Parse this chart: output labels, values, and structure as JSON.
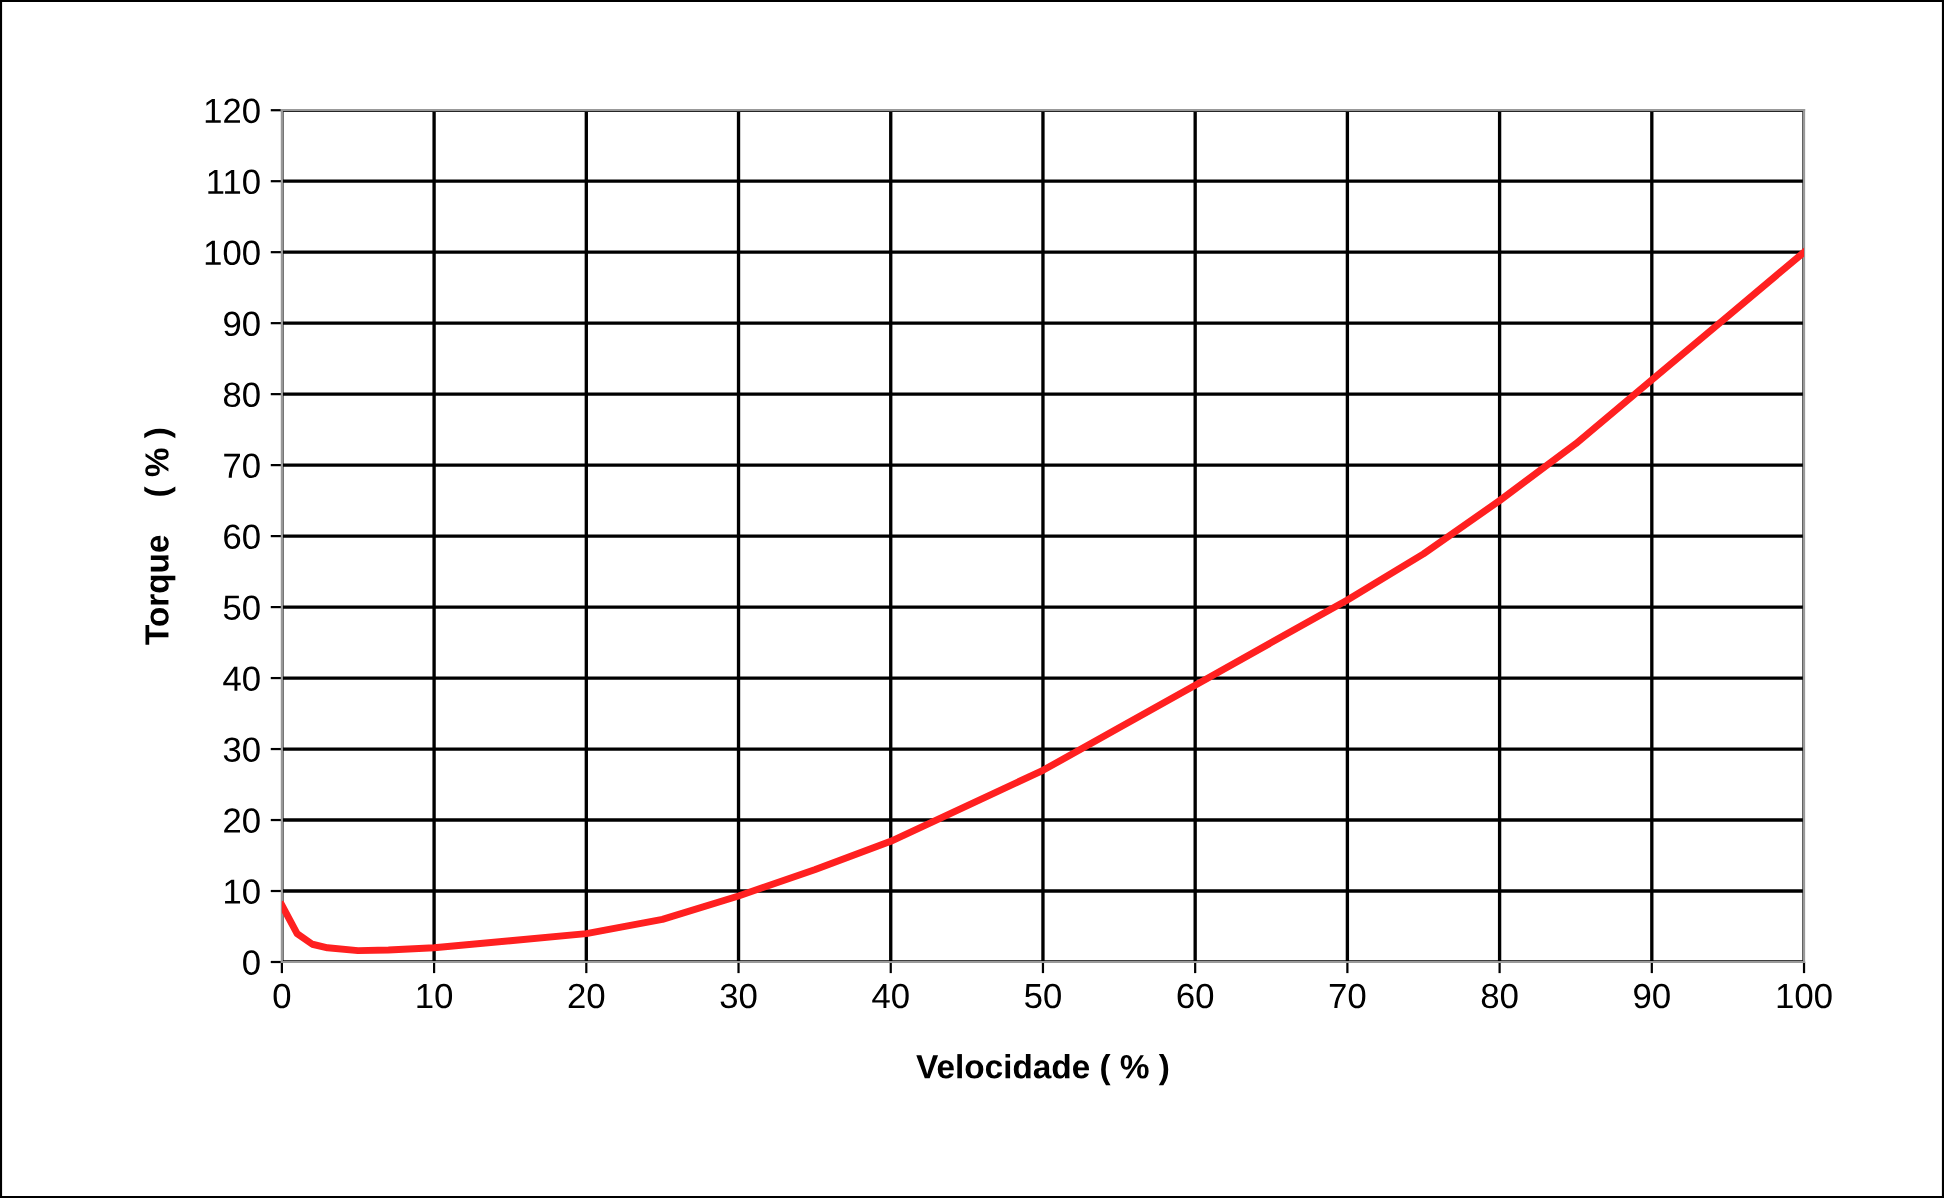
{
  "chart_data": {
    "type": "line",
    "xlabel": "Velocidade ( % )",
    "ylabel": "Torque    ( % )",
    "x": [
      0,
      1,
      2,
      3,
      5,
      7,
      10,
      15,
      20,
      25,
      30,
      35,
      40,
      45,
      50,
      55,
      60,
      65,
      70,
      75,
      80,
      85,
      90,
      95,
      100
    ],
    "series": [
      {
        "color": "#ff2020",
        "values": [
          8,
          4,
          2.5,
          2,
          1.6,
          1.7,
          2,
          3,
          4,
          6,
          9.3,
          13,
          17,
          22,
          27,
          33,
          39,
          45,
          51,
          57.5,
          65,
          73,
          82,
          91,
          100
        ]
      }
    ],
    "xlim": [
      0,
      100
    ],
    "xticks": [
      0,
      10,
      20,
      30,
      40,
      50,
      60,
      70,
      80,
      90,
      100
    ],
    "ylim": [
      0,
      120
    ],
    "yticks": [
      0,
      10,
      20,
      30,
      40,
      50,
      60,
      70,
      80,
      90,
      100,
      110,
      120
    ],
    "grid": true,
    "marker": "none",
    "line_style": "solid"
  }
}
